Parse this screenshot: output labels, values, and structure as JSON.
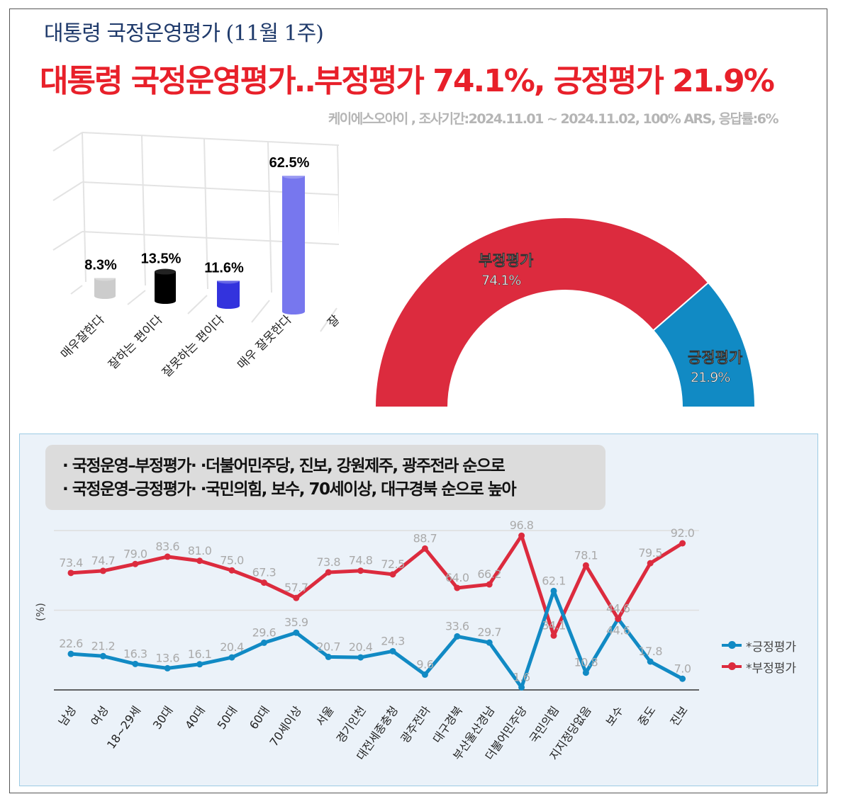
{
  "header": {
    "title": "대통령 국정운영평가 (11월 1주)",
    "headline": "대통령 국정운영평가‥부정평가 74.1%, 긍정평가 21.9%",
    "source": "케이에스오아이 , 조사기간:2024.11.01 ~ 2024.11.02, 100% ARS, 응답률:6%"
  },
  "notes": [
    "· 국정운영–부정평가· ·더불어민주당, 진보, 강원제주, 광주전라 순으로",
    "· 국정운영–긍정평가· ·국민의힘, 보수, 70세이상, 대구경북 순으로 높아"
  ],
  "chart_data": [
    {
      "type": "bar",
      "title": "",
      "categories": [
        "매우잘한다",
        "잘하는 편이다",
        "잘못하는 편이다",
        "매우 잘못한다",
        "잘"
      ],
      "values": [
        8.3,
        13.5,
        11.6,
        62.5,
        null
      ],
      "labels": [
        "8.3%",
        "13.5%",
        "11.6%",
        "62.5%"
      ],
      "colors": [
        "#cccccc",
        "#000000",
        "#3333dd",
        "#7777ee"
      ],
      "ylim": [
        0,
        70
      ]
    },
    {
      "type": "pie",
      "subtype": "half-donut",
      "slices": [
        {
          "name": "부정평가",
          "value": 74.1,
          "label": "74.1%",
          "color": "#dc2b3e"
        },
        {
          "name": "긍정평가",
          "value": 21.9,
          "label": "21.9%",
          "color": "#118ac4"
        }
      ]
    },
    {
      "type": "line",
      "ylabel": "(%)",
      "ylim": [
        0,
        100
      ],
      "grid": true,
      "legend": "right",
      "categories": [
        "남성",
        "여성",
        "18~29세",
        "30대",
        "40대",
        "50대",
        "60대",
        "70세이상",
        "서울",
        "경기인천",
        "대전세종충청",
        "광주전라",
        "대구경북",
        "부산울산경남",
        "더불어민주당",
        "국민의힘",
        "지지정당없음",
        "보수",
        "중도",
        "진보"
      ],
      "series": [
        {
          "name": "*긍정평가",
          "color": "#118ac4",
          "values": [
            22.6,
            21.2,
            16.3,
            13.6,
            16.1,
            20.4,
            29.6,
            35.9,
            20.7,
            20.4,
            24.3,
            9.6,
            33.6,
            29.7,
            1.6,
            62.1,
            10.8,
            44.6,
            17.8,
            7.0
          ]
        },
        {
          "name": "*부정평가",
          "color": "#dc2b3e",
          "values": [
            73.4,
            74.7,
            79.0,
            83.6,
            81.0,
            75.0,
            67.3,
            57.7,
            73.8,
            74.8,
            72.5,
            88.7,
            64.0,
            66.2,
            96.8,
            34.1,
            78.1,
            44.6,
            79.5,
            92.0
          ]
        }
      ]
    }
  ]
}
